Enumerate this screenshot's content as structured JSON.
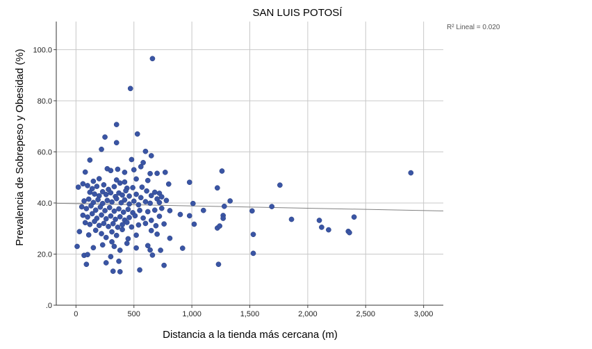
{
  "chart_data": {
    "type": "scatter",
    "title": "SAN LUIS POTOSÍ",
    "xlabel": "Distancia a la tienda más cercana (m)",
    "ylabel": "Prevalencia de Sobrepeso y Obesidad (%)",
    "xlim": [
      -170,
      3170
    ],
    "ylim": [
      0,
      111
    ],
    "x_ticks": [
      0,
      500,
      1000,
      1500,
      2000,
      2500,
      3000
    ],
    "x_tick_labels": [
      "0",
      "500",
      "1,000",
      "1,500",
      "2,000",
      "2,500",
      "3,000"
    ],
    "y_ticks": [
      0,
      20,
      40,
      60,
      80,
      100
    ],
    "y_tick_labels": [
      ".0",
      "20.0",
      "40.0",
      "60.0",
      "80.0",
      "100.0"
    ],
    "grid": true,
    "marker_color": "#3a55a4",
    "fit_line_color": "#808080",
    "annotation": "R² Lineal = 0.020",
    "fit_line": [
      [
        -170,
        39.9
      ],
      [
        3170,
        36.9
      ]
    ],
    "points": [
      [
        660,
        96.5
      ],
      [
        470,
        84.8
      ],
      [
        350,
        70.7
      ],
      [
        530,
        67.0
      ],
      [
        250,
        65.8
      ],
      [
        350,
        63.6
      ],
      [
        600,
        60.2
      ],
      [
        650,
        58.5
      ],
      [
        220,
        61.0
      ],
      [
        480,
        57.0
      ],
      [
        120,
        56.8
      ],
      [
        580,
        55.8
      ],
      [
        770,
        52.0
      ],
      [
        1260,
        52.5
      ],
      [
        2890,
        51.8
      ],
      [
        80,
        52.1
      ],
      [
        270,
        53.4
      ],
      [
        300,
        52.7
      ],
      [
        360,
        53.2
      ],
      [
        420,
        52.0
      ],
      [
        500,
        53.0
      ],
      [
        560,
        54.2
      ],
      [
        640,
        51.5
      ],
      [
        700,
        51.6
      ],
      [
        150,
        48.5
      ],
      [
        200,
        49.5
      ],
      [
        350,
        49.0
      ],
      [
        420,
        48.2
      ],
      [
        520,
        49.4
      ],
      [
        620,
        48.8
      ],
      [
        980,
        48.1
      ],
      [
        1760,
        47.0
      ],
      [
        1220,
        45.9
      ],
      [
        20,
        46.2
      ],
      [
        60,
        47.5
      ],
      [
        100,
        46.8
      ],
      [
        140,
        45.6
      ],
      [
        180,
        46.5
      ],
      [
        240,
        47.1
      ],
      [
        280,
        45.3
      ],
      [
        330,
        46.4
      ],
      [
        380,
        47.8
      ],
      [
        440,
        45.8
      ],
      [
        490,
        46.0
      ],
      [
        570,
        46.2
      ],
      [
        610,
        44.7
      ],
      [
        680,
        44.2
      ],
      [
        720,
        43.8
      ],
      [
        800,
        47.4
      ],
      [
        120,
        44.2
      ],
      [
        160,
        43.5
      ],
      [
        200,
        42.8
      ],
      [
        230,
        44.4
      ],
      [
        260,
        43.3
      ],
      [
        300,
        44.0
      ],
      [
        340,
        42.5
      ],
      [
        370,
        43.9
      ],
      [
        400,
        43.1
      ],
      [
        430,
        44.8
      ],
      [
        460,
        42.7
      ],
      [
        520,
        43.4
      ],
      [
        560,
        42.1
      ],
      [
        650,
        42.9
      ],
      [
        700,
        41.6
      ],
      [
        740,
        42.4
      ],
      [
        70,
        40.8
      ],
      [
        110,
        41.5
      ],
      [
        150,
        40.2
      ],
      [
        190,
        41.3
      ],
      [
        230,
        39.8
      ],
      [
        270,
        41.0
      ],
      [
        310,
        40.4
      ],
      [
        350,
        41.7
      ],
      [
        390,
        40.1
      ],
      [
        420,
        41.2
      ],
      [
        460,
        39.6
      ],
      [
        500,
        40.7
      ],
      [
        540,
        39.3
      ],
      [
        600,
        40.5
      ],
      [
        640,
        39.9
      ],
      [
        720,
        40.2
      ],
      [
        780,
        41.0
      ],
      [
        1010,
        39.8
      ],
      [
        1330,
        40.8
      ],
      [
        1280,
        38.7
      ],
      [
        1690,
        38.6
      ],
      [
        50,
        38.5
      ],
      [
        90,
        37.8
      ],
      [
        130,
        38.9
      ],
      [
        170,
        37.2
      ],
      [
        210,
        38.4
      ],
      [
        250,
        37.0
      ],
      [
        290,
        38.2
      ],
      [
        330,
        36.8
      ],
      [
        370,
        37.7
      ],
      [
        410,
        36.4
      ],
      [
        450,
        37.5
      ],
      [
        490,
        36.2
      ],
      [
        550,
        37.1
      ],
      [
        620,
        36.6
      ],
      [
        680,
        37.2
      ],
      [
        740,
        37.9
      ],
      [
        810,
        37.0
      ],
      [
        1100,
        37.1
      ],
      [
        1520,
        36.9
      ],
      [
        60,
        35.2
      ],
      [
        100,
        34.5
      ],
      [
        140,
        35.8
      ],
      [
        180,
        34.0
      ],
      [
        220,
        35.3
      ],
      [
        260,
        33.8
      ],
      [
        300,
        34.9
      ],
      [
        340,
        33.6
      ],
      [
        380,
        34.6
      ],
      [
        420,
        33.3
      ],
      [
        460,
        34.3
      ],
      [
        510,
        35.0
      ],
      [
        580,
        34.1
      ],
      [
        650,
        33.2
      ],
      [
        720,
        34.8
      ],
      [
        900,
        35.5
      ],
      [
        980,
        35.0
      ],
      [
        1270,
        35.1
      ],
      [
        1270,
        34.0
      ],
      [
        1860,
        33.6
      ],
      [
        2100,
        33.2
      ],
      [
        2400,
        34.5
      ],
      [
        80,
        32.3
      ],
      [
        120,
        31.6
      ],
      [
        160,
        32.8
      ],
      [
        200,
        31.2
      ],
      [
        240,
        32.0
      ],
      [
        280,
        30.8
      ],
      [
        320,
        31.9
      ],
      [
        360,
        30.5
      ],
      [
        400,
        31.5
      ],
      [
        440,
        32.4
      ],
      [
        480,
        30.6
      ],
      [
        540,
        31.4
      ],
      [
        600,
        32.0
      ],
      [
        690,
        31.1
      ],
      [
        760,
        31.8
      ],
      [
        1020,
        31.7
      ],
      [
        1220,
        30.2
      ],
      [
        1240,
        31.0
      ],
      [
        2120,
        30.5
      ],
      [
        2180,
        29.5
      ],
      [
        2350,
        28.9
      ],
      [
        2360,
        28.4
      ],
      [
        30,
        28.8
      ],
      [
        110,
        27.5
      ],
      [
        170,
        29.3
      ],
      [
        220,
        28.0
      ],
      [
        260,
        26.5
      ],
      [
        310,
        28.7
      ],
      [
        350,
        27.3
      ],
      [
        400,
        29.6
      ],
      [
        450,
        26.0
      ],
      [
        520,
        27.4
      ],
      [
        650,
        29.2
      ],
      [
        700,
        27.8
      ],
      [
        810,
        26.2
      ],
      [
        1530,
        27.7
      ],
      [
        10,
        23.0
      ],
      [
        150,
        22.5
      ],
      [
        230,
        23.6
      ],
      [
        310,
        24.8
      ],
      [
        330,
        23.0
      ],
      [
        380,
        21.5
      ],
      [
        440,
        24.2
      ],
      [
        520,
        22.4
      ],
      [
        620,
        23.3
      ],
      [
        640,
        21.6
      ],
      [
        730,
        21.5
      ],
      [
        920,
        22.3
      ],
      [
        70,
        19.5
      ],
      [
        100,
        19.8
      ],
      [
        300,
        19.0
      ],
      [
        370,
        17.2
      ],
      [
        660,
        19.6
      ],
      [
        1530,
        20.3
      ],
      [
        90,
        16.0
      ],
      [
        260,
        16.6
      ],
      [
        760,
        15.6
      ],
      [
        1230,
        16.0
      ],
      [
        320,
        13.3
      ],
      [
        380,
        13.1
      ],
      [
        550,
        13.8
      ]
    ]
  }
}
